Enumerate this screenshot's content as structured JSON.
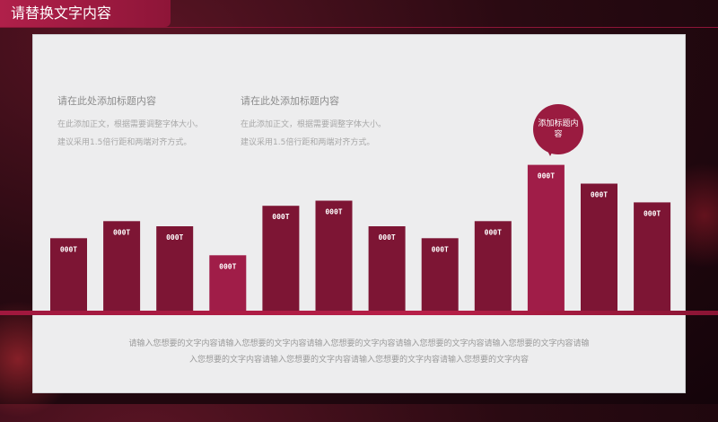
{
  "slide": {
    "title": "请替换文字内容"
  },
  "blocks": [
    {
      "heading": "请在此处添加标题内容",
      "lines": [
        "在此添加正文，根据需要调整字体大小。",
        "建议采用1.5倍行距和两端对齐方式。"
      ]
    },
    {
      "heading": "请在此处添加标题内容",
      "lines": [
        "在此添加正文，根据需要调整字体大小。",
        "建议采用1.5倍行距和两端对齐方式。"
      ]
    }
  ],
  "bubble": {
    "text": "添加标题内容"
  },
  "footer": {
    "line1": "请输入您想要的文字内容请输入您想要的文字内容请输入您想要的文字内容请输入您想要的文字内容请输入您想要的文字内容请输",
    "line2": "入您想要的文字内容请输入您想要的文字内容请输入您想要的文字内容请输入您想要的文字内容"
  },
  "colors": {
    "bar": "#7d1534",
    "highlight": "#a01d48",
    "panel": "#ededee"
  },
  "chart_data": {
    "type": "bar",
    "values": [
      4.3,
      5.3,
      5.0,
      3.3,
      6.2,
      6.5,
      5.0,
      4.3,
      5.3,
      8.6,
      7.5,
      6.4
    ],
    "labels": [
      "000T",
      "000T",
      "000T",
      "000T",
      "000T",
      "000T",
      "000T",
      "000T",
      "000T",
      "000T",
      "000T",
      "000T"
    ],
    "highlight_indices": [
      3,
      9
    ]
  }
}
